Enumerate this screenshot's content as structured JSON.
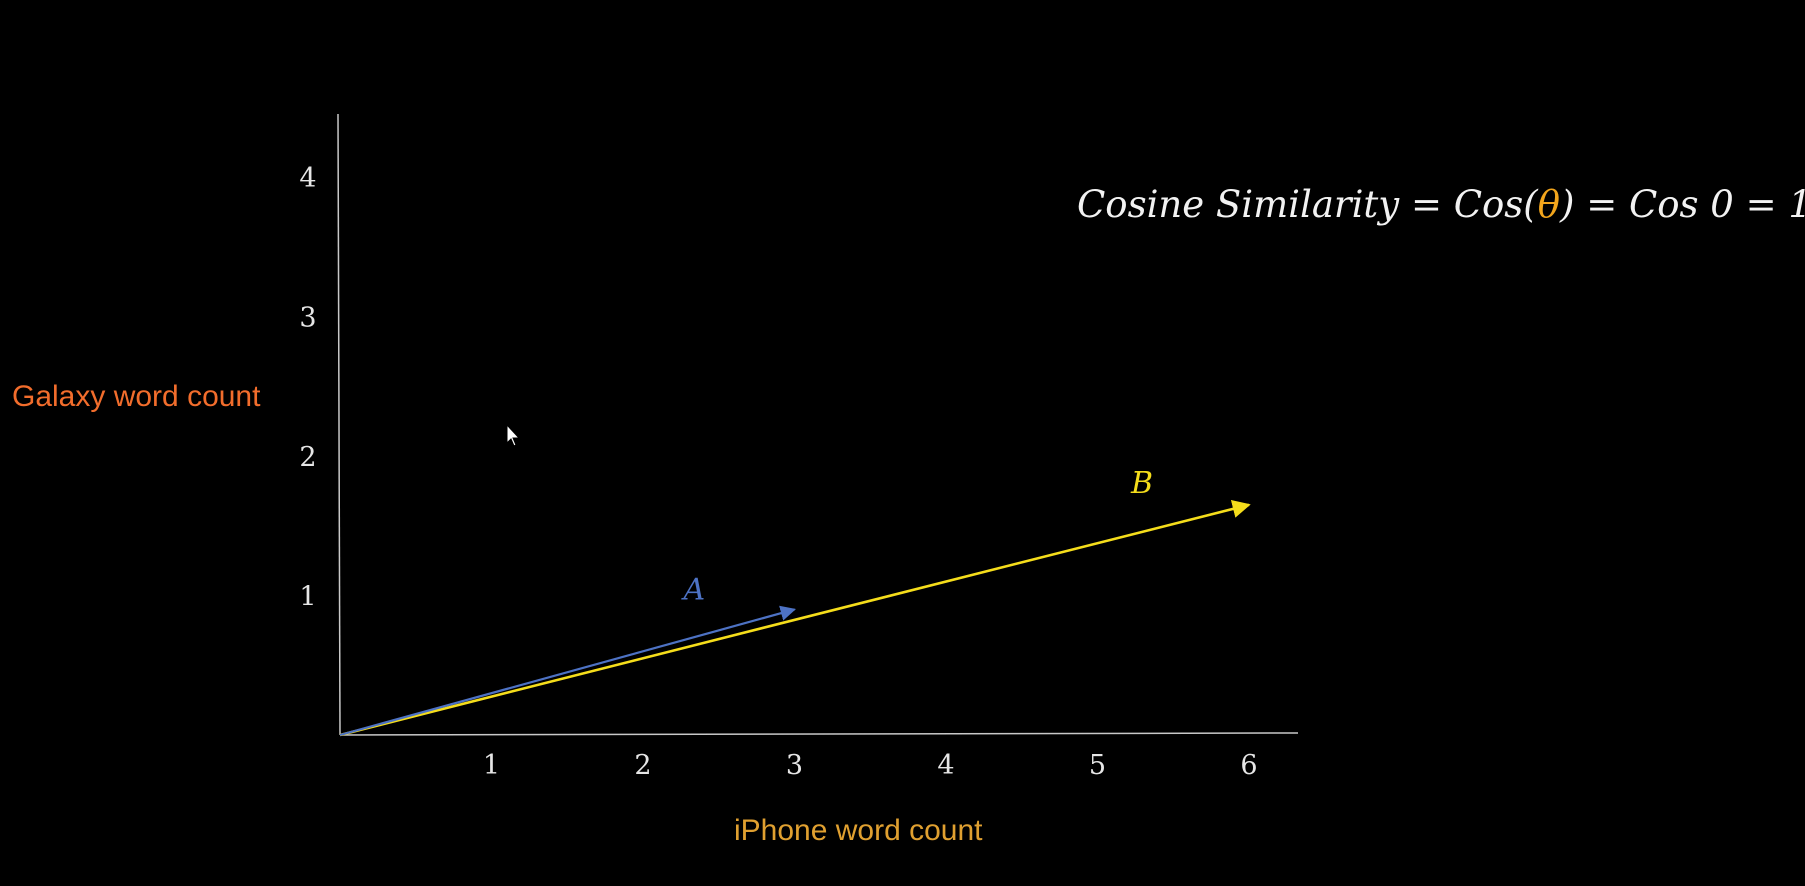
{
  "chart_data": {
    "type": "line",
    "xlabel": "iPhone word count",
    "ylabel": "Galaxy word count",
    "xlim": [
      0,
      6.5
    ],
    "ylim": [
      0,
      4.5
    ],
    "x_ticks": [
      "1",
      "2",
      "3",
      "4",
      "5",
      "6"
    ],
    "y_ticks": [
      "1",
      "2",
      "3",
      "4"
    ],
    "grid": false,
    "series": [
      {
        "name": "A",
        "color": "#4d72c4",
        "points": [
          [
            0,
            0
          ],
          [
            3,
            0.9
          ]
        ]
      },
      {
        "name": "B",
        "color": "#f5dd1b",
        "points": [
          [
            0,
            0
          ],
          [
            6,
            1.65
          ]
        ]
      }
    ]
  },
  "formula": {
    "prefix": "Cosine Similarity = Cos(",
    "theta": "θ",
    "suffix": ") = Cos 0 = 1"
  },
  "colors": {
    "background": "#000000",
    "axis": "#c8c8c8",
    "formula_text": "#f2f2f2",
    "formula_highlight": "#f2a51c",
    "ylabel": "#f26d2c",
    "xlabel": "#e0a030"
  },
  "icons": {
    "cursor": "mouse-cursor-icon"
  }
}
